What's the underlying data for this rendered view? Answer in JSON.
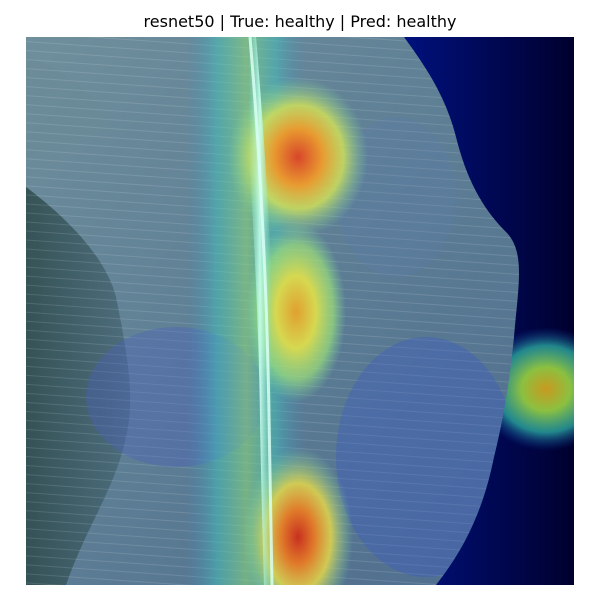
{
  "figure": {
    "title": "resnet50 | True: healthy | Pred: healthy"
  },
  "image": {
    "description_icon": "leaf-gradcam-heatmap",
    "colors": {
      "heatmap_low": "#00007a",
      "heatmap_mid": "#3fd6c4",
      "heatmap_high": "#d8462a",
      "leaf_base": "#5f7f8f"
    }
  }
}
